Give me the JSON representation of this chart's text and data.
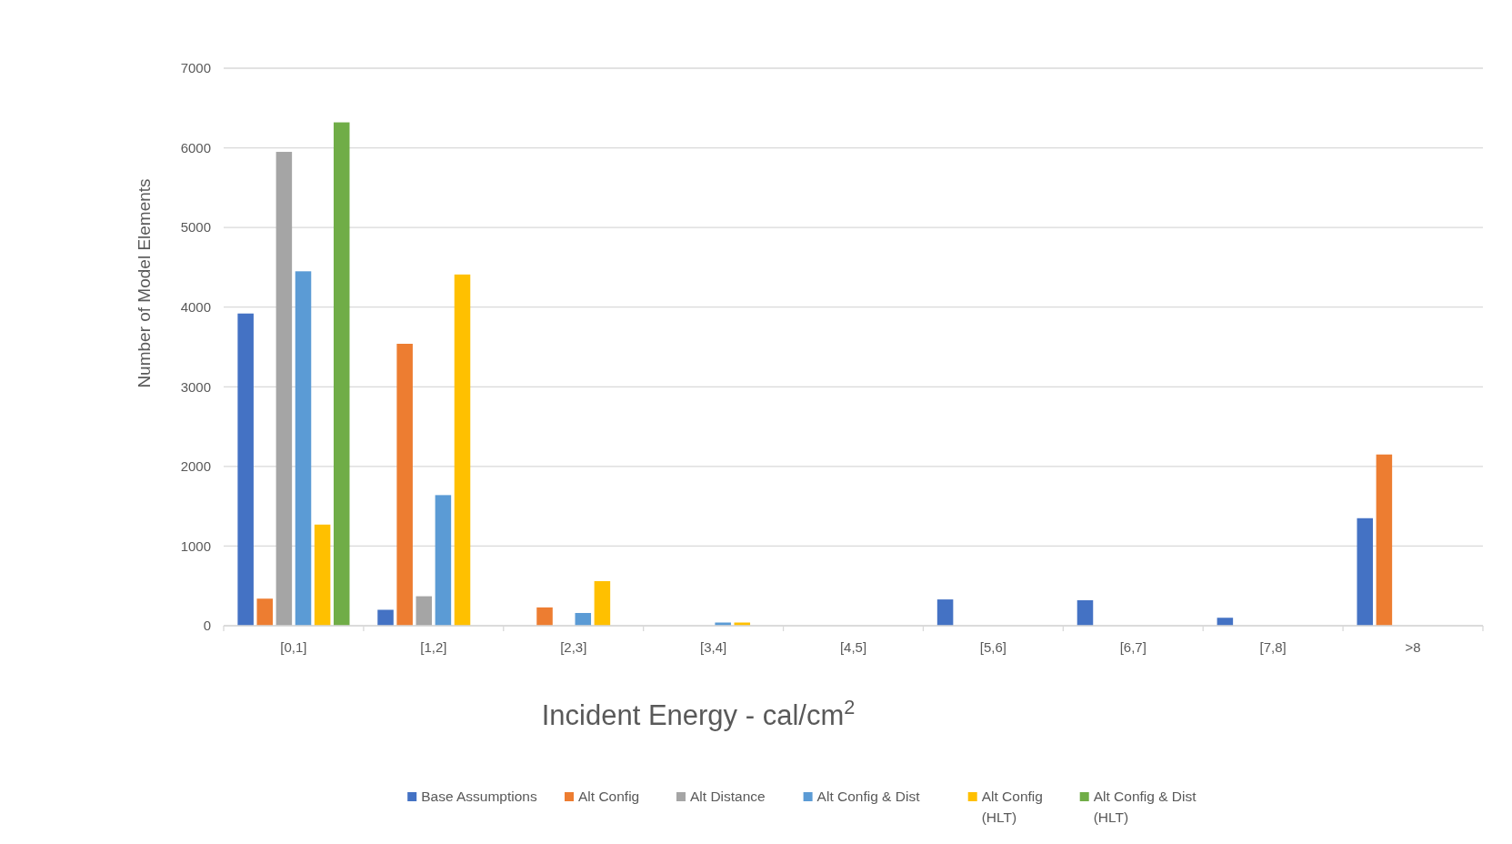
{
  "chart_data": {
    "type": "bar",
    "xlabel": "Incident Energy - cal/cm$^{2}$",
    "ylabel": "Number of Model Elements",
    "categories": [
      "[0,1]",
      "[1,2]",
      "[2,3]",
      "[3,4]",
      "[4,5]",
      "[5,6]",
      "[6,7]",
      "[7,8]",
      ">8"
    ],
    "series": [
      {
        "name": "Base Assumptions",
        "color": "#4472c4",
        "values": [
          3920,
          200,
          null,
          null,
          null,
          330,
          320,
          100,
          1350
        ]
      },
      {
        "name": "Alt Config",
        "color": "#ed7d31",
        "values": [
          340,
          3540,
          230,
          null,
          null,
          null,
          null,
          null,
          2150
        ]
      },
      {
        "name": "Alt Distance",
        "color": "#a5a5a5",
        "values": [
          5950,
          370,
          null,
          null,
          null,
          null,
          null,
          null,
          null
        ]
      },
      {
        "name": "Alt Config & Dist",
        "color": "#5b9bd5",
        "values": [
          4450,
          1640,
          160,
          40,
          null,
          null,
          null,
          null,
          null
        ]
      },
      {
        "name": "Alt Config (HLT)",
        "color": "#ffc000",
        "values": [
          1270,
          4410,
          560,
          40,
          null,
          null,
          null,
          null,
          null
        ]
      },
      {
        "name": "Alt Config & Dist (HLT)",
        "color": "#70ad47",
        "values": [
          6320,
          null,
          null,
          null,
          null,
          null,
          null,
          null,
          null
        ]
      }
    ],
    "ylim": [
      0,
      7000
    ],
    "yticks": [
      0,
      1000,
      2000,
      3000,
      4000,
      5000,
      6000,
      7000
    ],
    "grid": "y",
    "legend": "bottom"
  }
}
